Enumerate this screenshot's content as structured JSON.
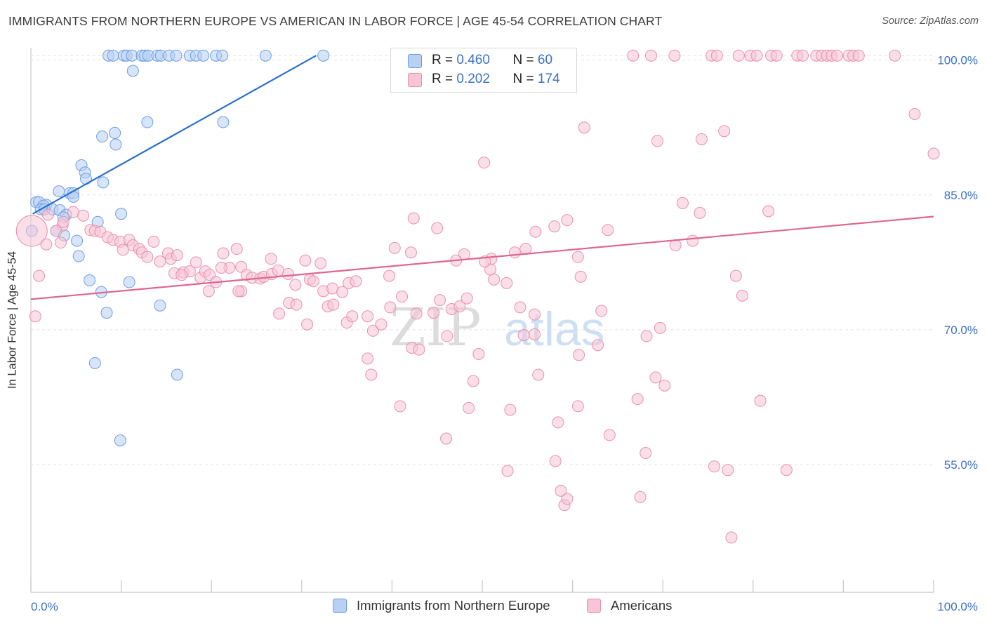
{
  "title": "IMMIGRANTS FROM NORTHERN EUROPE VS AMERICAN IN LABOR FORCE | AGE 45-54 CORRELATION CHART",
  "source": "Source: ZipAtlas.com",
  "watermark": {
    "zip": "ZIP",
    "atlas": "atlas"
  },
  "legend": {
    "rows": [
      {
        "r_label": "R =",
        "r_value": "0.460",
        "n_label": "N =",
        "n_value": "60",
        "color": "#b8d0f4",
        "border": "#6a9ee6"
      },
      {
        "r_label": "R =",
        "r_value": "0.202",
        "n_label": "N =",
        "n_value": "174",
        "color": "#f7c5d5",
        "border": "#e890ad"
      }
    ]
  },
  "bottom_legend": [
    {
      "label": "Immigrants from Northern Europe",
      "color": "#b8d0f4",
      "border": "#6a9ee6"
    },
    {
      "label": "Americans",
      "color": "#f7c5d5",
      "border": "#e890ad"
    }
  ],
  "chart_data": {
    "type": "scatter",
    "title": "IMMIGRANTS FROM NORTHERN EUROPE VS AMERICAN IN LABOR FORCE | AGE 45-54 CORRELATION CHART",
    "xlabel": "",
    "ylabel": "In Labor Force | Age 45-54",
    "xlim": [
      0,
      100
    ],
    "ylim": [
      40.8,
      102
    ],
    "x_tick_labels": [
      "0.0%",
      "100.0%"
    ],
    "y_ticks": [
      {
        "value": 100,
        "label": "100.0%"
      },
      {
        "value": 85,
        "label": "85.0%"
      },
      {
        "value": 70,
        "label": "70.0%"
      },
      {
        "value": 55,
        "label": "55.0%"
      }
    ],
    "grid": true,
    "series": [
      {
        "name": "Immigrants from Northern Europe",
        "color": "#6a9ee6",
        "fill": "#b8d0f4",
        "trend": {
          "x": [
            0.2,
            31.6
          ],
          "y": [
            82.9,
            100.5
          ],
          "color": "#2a6fce"
        },
        "points": [
          [
            8.6,
            100.5
          ],
          [
            9.1,
            100.5
          ],
          [
            10.3,
            100.5
          ],
          [
            10.6,
            100.5
          ],
          [
            11.2,
            100.5
          ],
          [
            12.3,
            100.5
          ],
          [
            12.6,
            100.5
          ],
          [
            13.0,
            100.5
          ],
          [
            14.0,
            100.5
          ],
          [
            14.4,
            100.5
          ],
          [
            15.3,
            100.5
          ],
          [
            16.1,
            100.5
          ],
          [
            17.6,
            100.5
          ],
          [
            18.3,
            100.5
          ],
          [
            19.1,
            100.5
          ],
          [
            20.5,
            100.5
          ],
          [
            21.2,
            100.5
          ],
          [
            26.0,
            100.5
          ],
          [
            32.4,
            100.5
          ],
          [
            11.3,
            98.8
          ],
          [
            12.9,
            93.1
          ],
          [
            21.3,
            93.1
          ],
          [
            9.3,
            91.9
          ],
          [
            7.9,
            91.5
          ],
          [
            9.4,
            90.6
          ],
          [
            5.6,
            88.3
          ],
          [
            6.0,
            87.5
          ],
          [
            6.1,
            86.8
          ],
          [
            8.0,
            86.4
          ],
          [
            3.1,
            85.4
          ],
          [
            4.3,
            85.2
          ],
          [
            4.7,
            85.2
          ],
          [
            4.7,
            84.8
          ],
          [
            0.6,
            84.2
          ],
          [
            0.9,
            84.2
          ],
          [
            1.7,
            83.9
          ],
          [
            1.4,
            83.8
          ],
          [
            1.1,
            83.4
          ],
          [
            1.5,
            83.4
          ],
          [
            2.4,
            83.4
          ],
          [
            3.2,
            83.3
          ],
          [
            3.9,
            82.8
          ],
          [
            3.6,
            82.5
          ],
          [
            7.4,
            82.0
          ],
          [
            10.0,
            82.9
          ],
          [
            0.1,
            81.0
          ],
          [
            2.8,
            81.0
          ],
          [
            3.7,
            80.5
          ],
          [
            5.1,
            79.9
          ],
          [
            5.3,
            78.2
          ],
          [
            6.5,
            75.5
          ],
          [
            10.9,
            75.3
          ],
          [
            7.8,
            74.2
          ],
          [
            8.4,
            71.9
          ],
          [
            14.3,
            72.7
          ],
          [
            7.1,
            66.3
          ],
          [
            16.2,
            65.0
          ],
          [
            9.9,
            57.7
          ]
        ]
      },
      {
        "name": "Americans",
        "color": "#e890ad",
        "fill": "#f7c5d5",
        "trend": {
          "x": [
            0,
            100
          ],
          "y": [
            73.4,
            82.6
          ],
          "color": "#e0668e"
        },
        "points": [
          [
            66.7,
            100.5
          ],
          [
            68.7,
            100.5
          ],
          [
            71.3,
            100.5
          ],
          [
            75.4,
            100.5
          ],
          [
            76.0,
            100.5
          ],
          [
            78.4,
            100.5
          ],
          [
            79.7,
            100.5
          ],
          [
            80.4,
            100.5
          ],
          [
            82.0,
            100.5
          ],
          [
            82.6,
            100.5
          ],
          [
            84.9,
            100.5
          ],
          [
            85.5,
            100.5
          ],
          [
            87.0,
            100.5
          ],
          [
            87.6,
            100.5
          ],
          [
            88.2,
            100.5
          ],
          [
            88.7,
            100.5
          ],
          [
            89.3,
            100.5
          ],
          [
            90.6,
            100.5
          ],
          [
            91.1,
            100.5
          ],
          [
            91.7,
            100.5
          ],
          [
            95.7,
            100.5
          ],
          [
            97.9,
            94.0
          ],
          [
            100.0,
            89.6
          ],
          [
            61.3,
            92.5
          ],
          [
            69.4,
            91.0
          ],
          [
            74.3,
            91.2
          ],
          [
            76.8,
            92.1
          ],
          [
            50.2,
            88.6
          ],
          [
            72.2,
            84.1
          ],
          [
            74.1,
            83.0
          ],
          [
            81.7,
            83.2
          ],
          [
            42.4,
            82.4
          ],
          [
            45.0,
            81.3
          ],
          [
            59.4,
            82.2
          ],
          [
            58.0,
            81.5
          ],
          [
            63.9,
            81.1
          ],
          [
            55.9,
            80.9
          ],
          [
            73.3,
            79.9
          ],
          [
            71.4,
            79.4
          ],
          [
            54.8,
            79.0
          ],
          [
            60.6,
            78.1
          ],
          [
            51.0,
            77.9
          ],
          [
            48.0,
            78.4
          ],
          [
            42.1,
            78.6
          ],
          [
            40.3,
            79.1
          ],
          [
            32.1,
            77.4
          ],
          [
            30.4,
            77.7
          ],
          [
            26.6,
            77.9
          ],
          [
            3.5,
            81.6
          ],
          [
            4.7,
            83.1
          ],
          [
            5.8,
            82.7
          ],
          [
            1.9,
            82.8
          ],
          [
            2.8,
            81.0
          ],
          [
            3.6,
            82.0
          ],
          [
            6.6,
            81.1
          ],
          [
            7.1,
            81.0
          ],
          [
            7.7,
            80.9
          ],
          [
            8.5,
            80.3
          ],
          [
            9.1,
            80.0
          ],
          [
            9.9,
            79.8
          ],
          [
            10.9,
            80.0
          ],
          [
            11.3,
            79.4
          ],
          [
            12.0,
            79.0
          ],
          [
            12.3,
            78.6
          ],
          [
            12.9,
            78.1
          ],
          [
            13.6,
            79.8
          ],
          [
            14.3,
            77.6
          ],
          [
            15.2,
            78.5
          ],
          [
            15.5,
            77.9
          ],
          [
            15.9,
            76.3
          ],
          [
            16.2,
            78.3
          ],
          [
            16.9,
            76.4
          ],
          [
            17.6,
            76.5
          ],
          [
            18.3,
            77.5
          ],
          [
            18.8,
            75.8
          ],
          [
            19.3,
            76.5
          ],
          [
            19.8,
            76.1
          ],
          [
            20.5,
            75.3
          ],
          [
            21.3,
            78.5
          ],
          [
            22.0,
            76.9
          ],
          [
            22.8,
            79.0
          ],
          [
            23.3,
            77.0
          ],
          [
            23.9,
            76.1
          ],
          [
            24.5,
            75.8
          ],
          [
            25.4,
            75.7
          ],
          [
            25.8,
            75.9
          ],
          [
            26.7,
            76.2
          ],
          [
            27.4,
            76.6
          ],
          [
            28.5,
            76.2
          ],
          [
            29.3,
            75.0
          ],
          [
            30.9,
            75.6
          ],
          [
            31.3,
            75.4
          ],
          [
            32.4,
            74.3
          ],
          [
            33.4,
            74.6
          ],
          [
            34.5,
            74.2
          ],
          [
            35.2,
            75.2
          ],
          [
            23.3,
            74.3
          ],
          [
            23.0,
            74.3
          ],
          [
            21.1,
            76.9
          ],
          [
            19.7,
            74.3
          ],
          [
            16.7,
            76.1
          ],
          [
            10.2,
            78.9
          ],
          [
            3.3,
            79.7
          ],
          [
            1.7,
            79.5
          ],
          [
            0.9,
            76.0
          ],
          [
            0.5,
            71.5
          ],
          [
            27.5,
            71.8
          ],
          [
            28.6,
            73.0
          ],
          [
            29.4,
            72.8
          ],
          [
            30.6,
            70.6
          ],
          [
            32.9,
            72.6
          ],
          [
            33.5,
            72.8
          ],
          [
            35.0,
            70.8
          ],
          [
            35.6,
            71.5
          ],
          [
            37.3,
            71.5
          ],
          [
            37.9,
            69.9
          ],
          [
            38.8,
            70.6
          ],
          [
            39.7,
            76.0
          ],
          [
            41.1,
            73.7
          ],
          [
            42.2,
            68.0
          ],
          [
            44.6,
            71.9
          ],
          [
            45.3,
            73.3
          ],
          [
            46.1,
            69.3
          ],
          [
            46.6,
            72.3
          ],
          [
            47.5,
            72.6
          ],
          [
            48.3,
            73.5
          ],
          [
            50.9,
            76.7
          ],
          [
            51.3,
            75.6
          ],
          [
            52.7,
            75.2
          ],
          [
            50.3,
            77.6
          ],
          [
            47.1,
            77.7
          ],
          [
            53.6,
            78.6
          ],
          [
            55.8,
            71.7
          ],
          [
            55.8,
            69.5
          ],
          [
            54.6,
            69.4
          ],
          [
            49.6,
            67.3
          ],
          [
            43.0,
            67.8
          ],
          [
            42.7,
            71.8
          ],
          [
            39.8,
            72.5
          ],
          [
            36.0,
            75.4
          ],
          [
            37.3,
            66.8
          ],
          [
            37.7,
            65.0
          ],
          [
            40.9,
            61.5
          ],
          [
            46.0,
            57.9
          ],
          [
            48.5,
            61.3
          ],
          [
            49.0,
            64.3
          ],
          [
            53.1,
            61.1
          ],
          [
            56.2,
            65.0
          ],
          [
            58.4,
            59.7
          ],
          [
            60.7,
            67.2
          ],
          [
            60.9,
            75.9
          ],
          [
            63.2,
            72.1
          ],
          [
            60.6,
            61.5
          ],
          [
            62.8,
            68.3
          ],
          [
            64.1,
            58.3
          ],
          [
            67.2,
            62.3
          ],
          [
            68.1,
            56.3
          ],
          [
            67.5,
            51.4
          ],
          [
            68.2,
            69.3
          ],
          [
            69.7,
            70.2
          ],
          [
            70.2,
            63.8
          ],
          [
            69.2,
            64.7
          ],
          [
            75.7,
            54.8
          ],
          [
            77.2,
            54.4
          ],
          [
            80.8,
            62.1
          ],
          [
            83.7,
            54.4
          ],
          [
            78.1,
            76.0
          ],
          [
            78.8,
            73.8
          ],
          [
            59.1,
            50.5
          ],
          [
            59.4,
            51.2
          ],
          [
            58.7,
            52.1
          ],
          [
            52.8,
            54.3
          ],
          [
            58.1,
            55.4
          ],
          [
            77.6,
            46.9
          ],
          [
            54.2,
            72.5
          ]
        ],
        "big_point": {
          "x": 0.1,
          "y": 81.0
        }
      }
    ]
  }
}
